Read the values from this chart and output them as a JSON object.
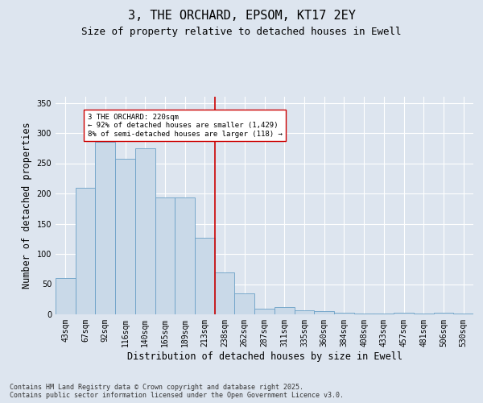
{
  "title_line1": "3, THE ORCHARD, EPSOM, KT17 2EY",
  "title_line2": "Size of property relative to detached houses in Ewell",
  "xlabel": "Distribution of detached houses by size in Ewell",
  "ylabel": "Number of detached properties",
  "categories": [
    "43sqm",
    "67sqm",
    "92sqm",
    "116sqm",
    "140sqm",
    "165sqm",
    "189sqm",
    "213sqm",
    "238sqm",
    "262sqm",
    "287sqm",
    "311sqm",
    "335sqm",
    "360sqm",
    "384sqm",
    "408sqm",
    "433sqm",
    "457sqm",
    "481sqm",
    "506sqm",
    "530sqm"
  ],
  "values": [
    60,
    210,
    285,
    257,
    275,
    193,
    193,
    127,
    69,
    35,
    10,
    12,
    7,
    5,
    3,
    1,
    1,
    3,
    1,
    3,
    1
  ],
  "bar_color": "#c9d9e8",
  "bar_edge_color": "#6aa0c7",
  "vline_index": 7,
  "vline_color": "#cc0000",
  "annotation_text": "3 THE ORCHARD: 220sqm\n← 92% of detached houses are smaller (1,429)\n8% of semi-detached houses are larger (118) →",
  "annotation_box_color": "#ffffff",
  "annotation_box_edge": "#cc0000",
  "ylim": [
    0,
    360
  ],
  "yticks": [
    0,
    50,
    100,
    150,
    200,
    250,
    300,
    350
  ],
  "background_color": "#dde5ef",
  "plot_background": "#dde5ef",
  "footer_text": "Contains HM Land Registry data © Crown copyright and database right 2025.\nContains public sector information licensed under the Open Government Licence v3.0.",
  "title_fontsize": 11,
  "subtitle_fontsize": 9,
  "tick_fontsize": 7,
  "label_fontsize": 8.5,
  "footer_fontsize": 6
}
